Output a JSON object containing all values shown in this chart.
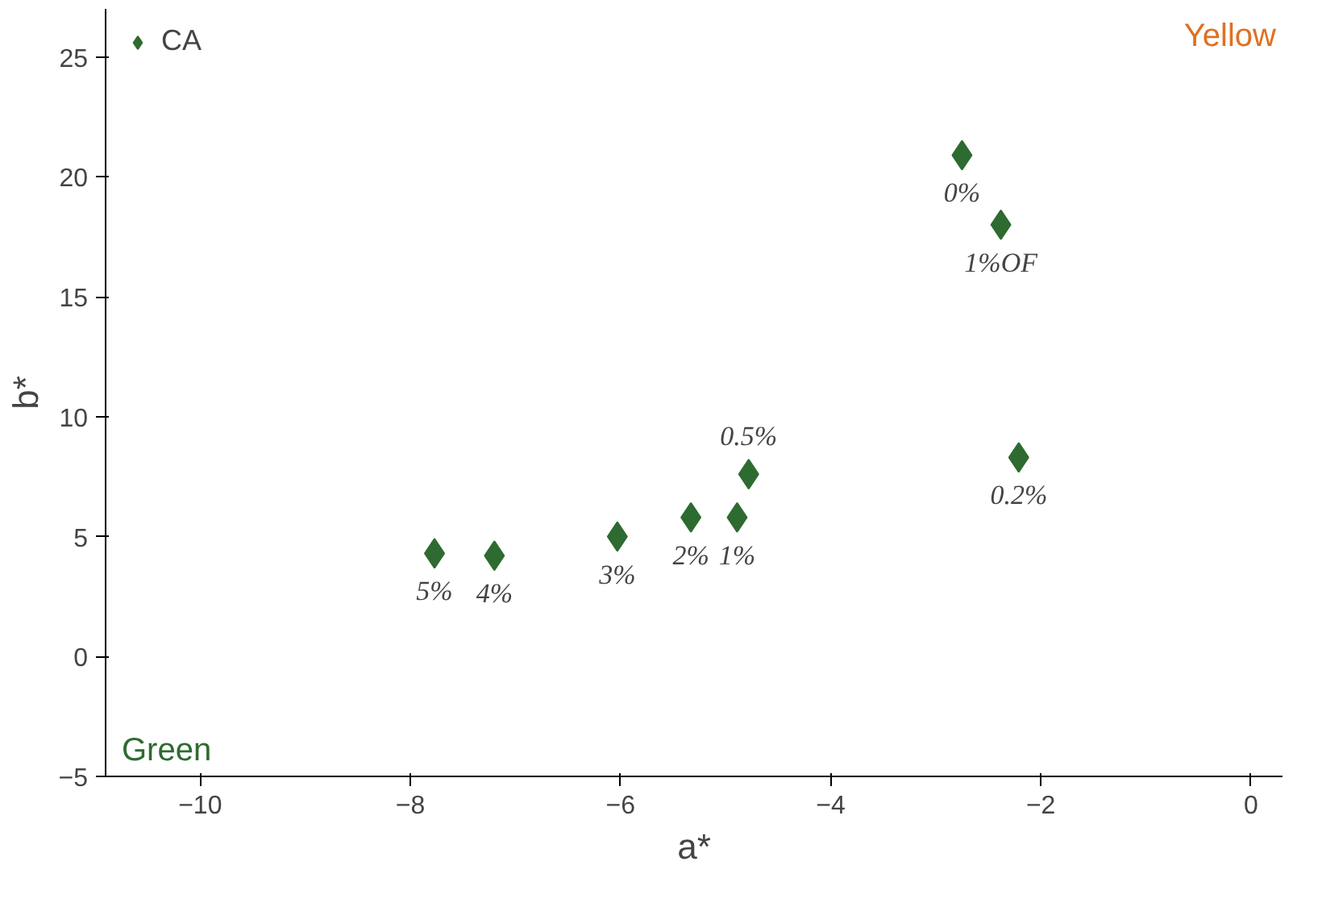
{
  "chart_data": {
    "type": "scatter",
    "xlabel": "a*",
    "ylabel": "b*",
    "x": [
      -7.77,
      -7.2,
      -6.03,
      -5.33,
      -4.89,
      -4.78,
      -2.21,
      -2.75,
      -2.38
    ],
    "series": [
      {
        "name": "CA",
        "color": "#2e6b30",
        "values": [
          4.3,
          4.2,
          5.0,
          5.8,
          5.8,
          7.6,
          8.3,
          20.9,
          18.0
        ]
      }
    ],
    "xlim": [
      -10.9,
      0.3
    ],
    "xticks": [
      -10,
      -8,
      -6,
      -4,
      -2,
      0
    ],
    "ylim": [
      -5,
      27
    ],
    "yticks": [
      -5,
      0,
      5,
      10,
      15,
      20,
      25
    ],
    "marker": "diamond",
    "grid": false,
    "legend": "top left",
    "annotations": [
      {
        "text": "5%",
        "x": -7.77,
        "y": 4.3
      },
      {
        "text": "4%",
        "x": -7.2,
        "y": 4.2
      },
      {
        "text": "3%",
        "x": -6.03,
        "y": 5.0
      },
      {
        "text": "2%",
        "x": -5.33,
        "y": 5.8
      },
      {
        "text": "1%",
        "x": -4.89,
        "y": 5.8
      },
      {
        "text": "0.5%",
        "x": -4.78,
        "y": 7.6
      },
      {
        "text": "0.2%",
        "x": -2.21,
        "y": 8.3
      },
      {
        "text": "0%",
        "x": -2.75,
        "y": 20.9
      },
      {
        "text": "1%OF",
        "x": -2.38,
        "y": 18.0
      },
      "Green",
      "Yellow"
    ]
  }
}
